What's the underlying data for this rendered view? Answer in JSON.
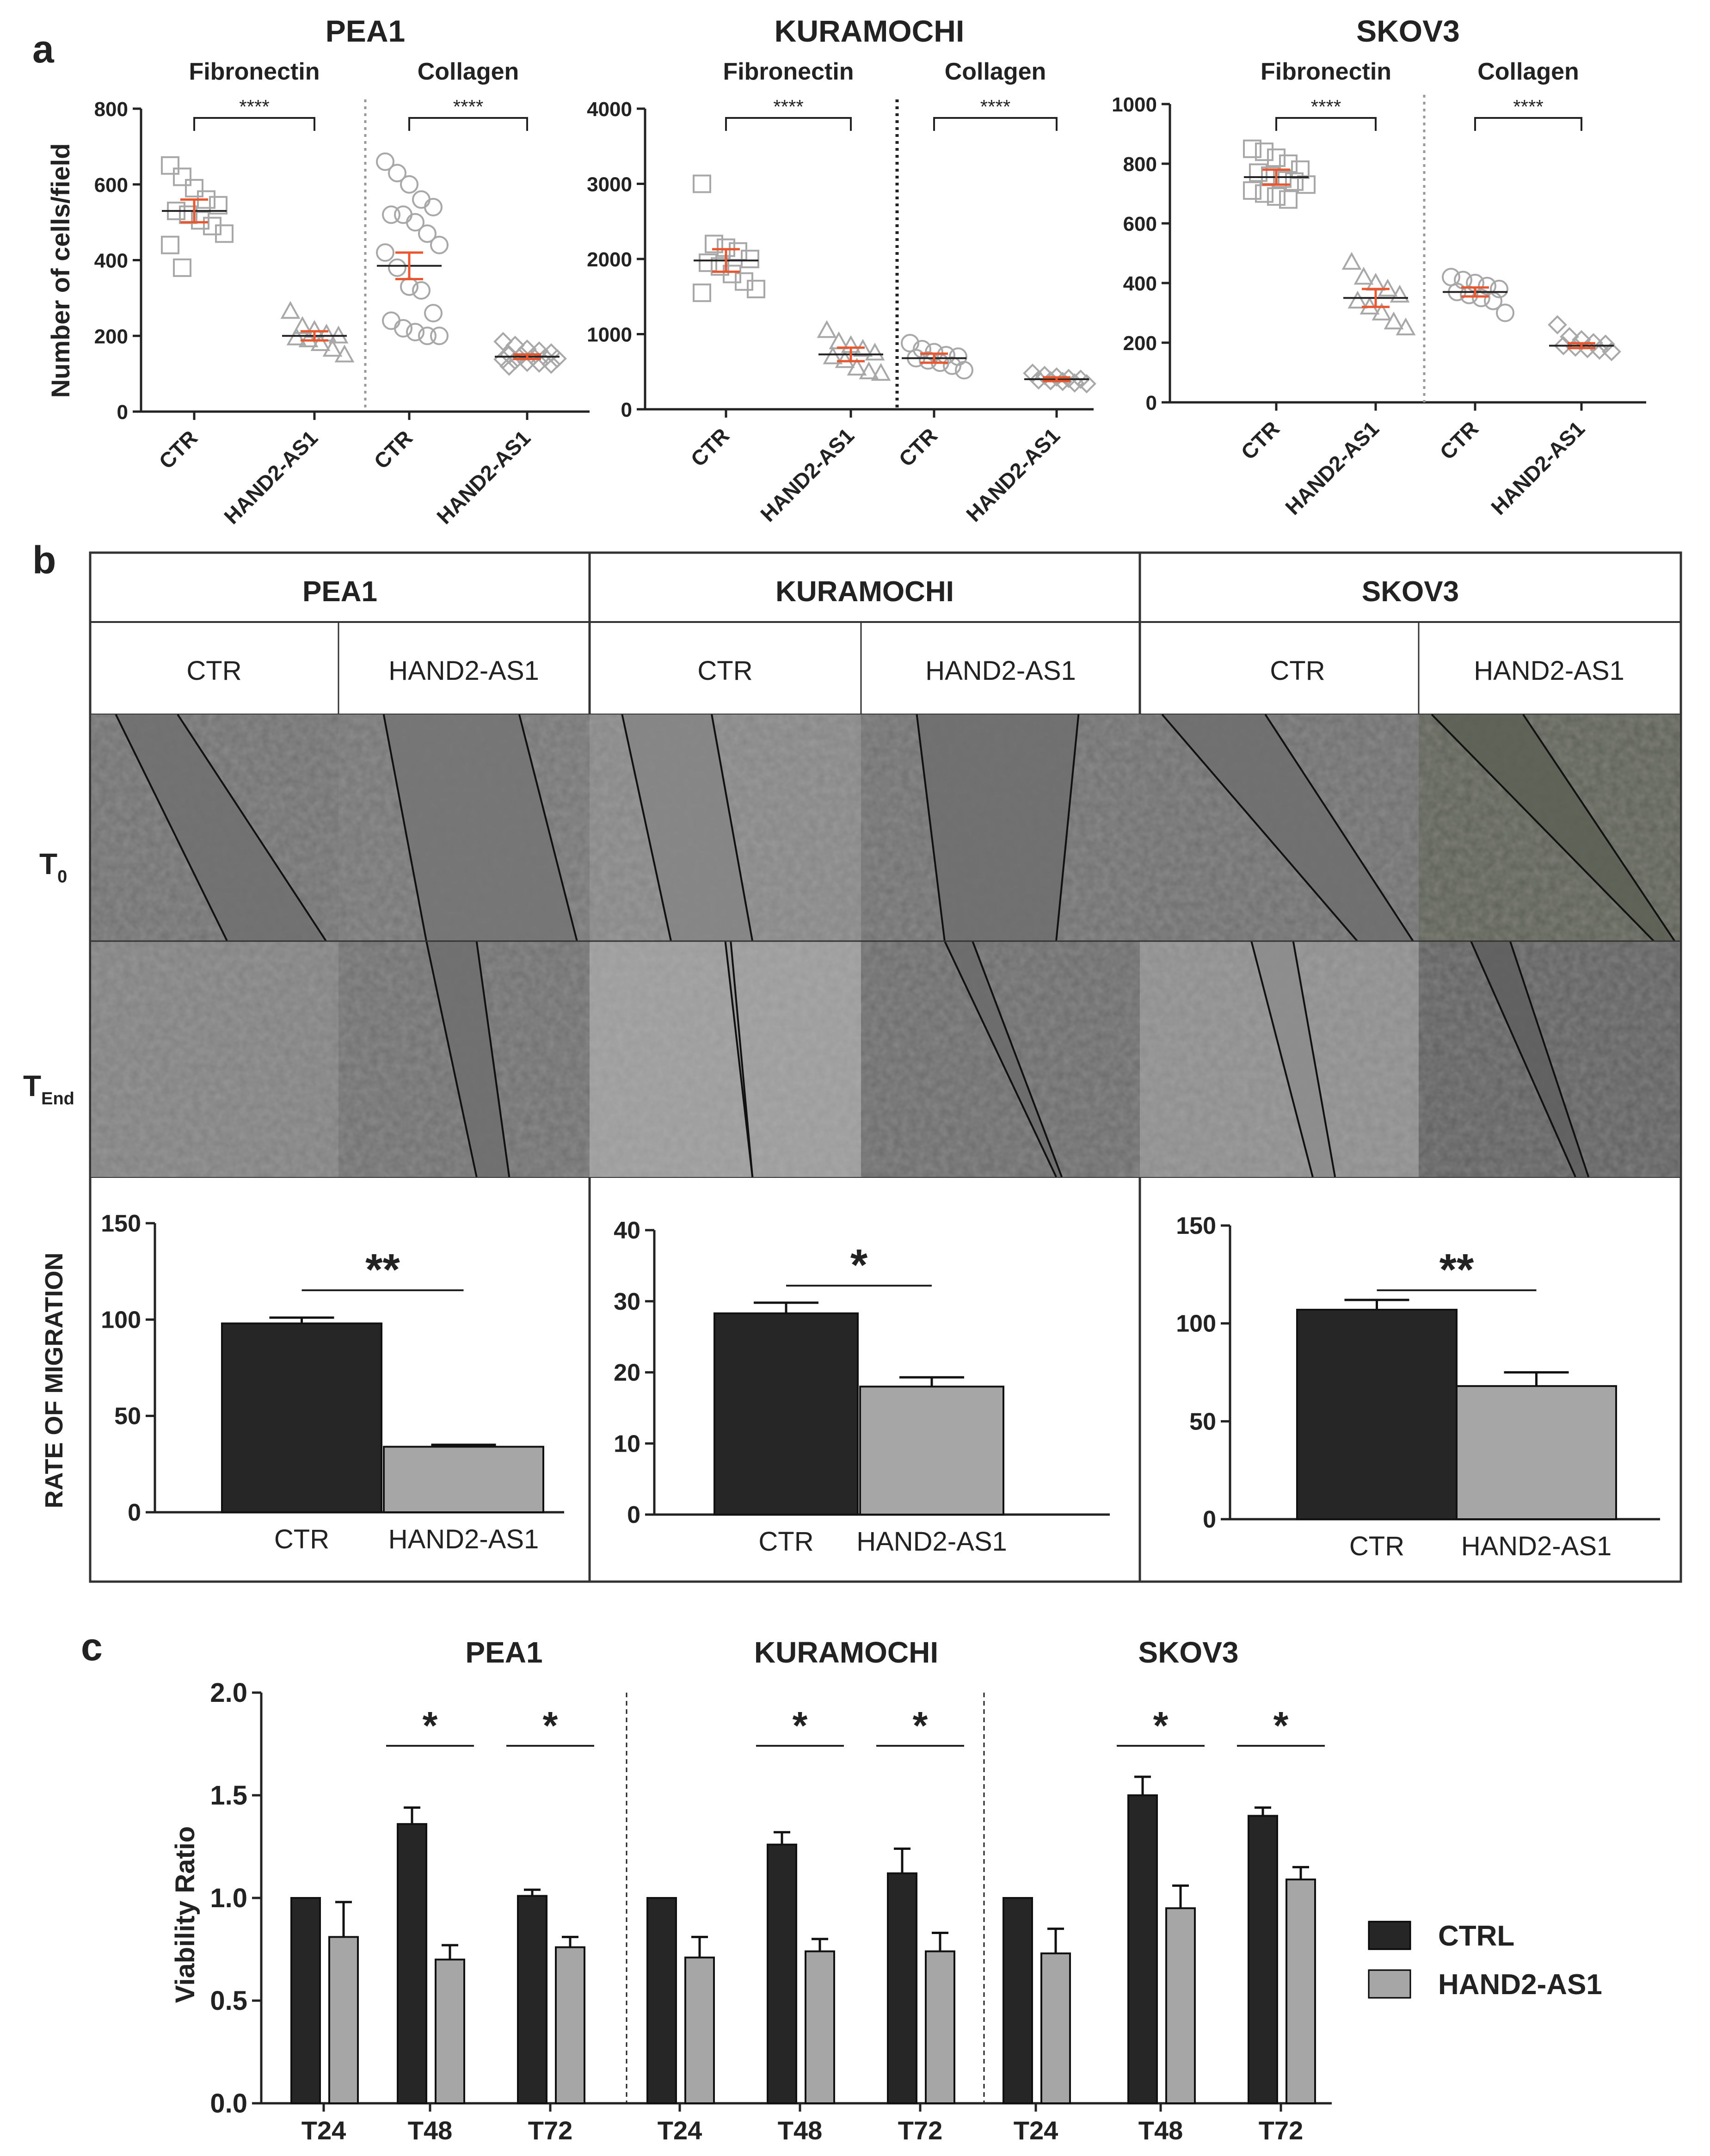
{
  "panels": {
    "a": "a",
    "b": "b",
    "c": "c"
  },
  "colors": {
    "ctr_bar": "#262626",
    "treat_bar": "#a6a6a6",
    "error_red": "#e8572f",
    "marker": "#a8a8a8"
  },
  "panel_a": {
    "ylabel": "Number of cells/field",
    "significance": "****",
    "charts": [
      {
        "cell_line": "PEA1",
        "substrates": [
          "Fibronectin",
          "Collagen"
        ],
        "categories": [
          "CTR",
          "HAND2-AS1",
          "CTR",
          "HAND2-AS1"
        ],
        "ymax": 800,
        "yticks": [
          0,
          200,
          400,
          600,
          800
        ],
        "groups": [
          {
            "marker": "square",
            "mean": 530,
            "sem": 30,
            "points": [
              650,
              620,
              590,
              560,
              545,
              530,
              520,
              505,
              490,
              470,
              440,
              380
            ]
          },
          {
            "marker": "triangle",
            "mean": 200,
            "sem": 12,
            "points": [
              265,
              225,
              215,
              205,
              200,
              195,
              190,
              180,
              165,
              150
            ]
          },
          {
            "marker": "circle",
            "mean": 385,
            "sem": 35,
            "points": [
              660,
              630,
              600,
              560,
              540,
              520,
              520,
              500,
              470,
              440,
              420,
              380,
              330,
              320,
              260,
              240,
              220,
              210,
              200,
              200
            ]
          },
          {
            "marker": "diamond",
            "mean": 145,
            "sem": 6,
            "points": [
              185,
              175,
              165,
              160,
              155,
              150,
              148,
              145,
              142,
              140,
              138,
              135,
              130,
              128,
              125,
              120
            ]
          }
        ]
      },
      {
        "cell_line": "KURAMOCHI",
        "substrates": [
          "Fibronectin",
          "Collagen"
        ],
        "categories": [
          "CTR",
          "HAND2-AS1",
          "CTR",
          "HAND2-AS1"
        ],
        "ymax": 4000,
        "yticks": [
          0,
          1000,
          2000,
          3000,
          4000
        ],
        "groups": [
          {
            "marker": "square",
            "mean": 1980,
            "sem": 150,
            "points": [
              3000,
              2200,
              2150,
              2100,
              2000,
              1950,
              1900,
              1800,
              1700,
              1600,
              1550
            ]
          },
          {
            "marker": "triangle",
            "mean": 730,
            "sem": 90,
            "points": [
              1050,
              900,
              850,
              800,
              750,
              700,
              650,
              550,
              500,
              480
            ]
          },
          {
            "marker": "circle",
            "mean": 680,
            "sem": 60,
            "points": [
              880,
              800,
              760,
              720,
              700,
              680,
              650,
              620,
              580,
              520
            ]
          },
          {
            "marker": "diamond",
            "mean": 400,
            "sem": 25,
            "points": [
              480,
              450,
              430,
              410,
              400,
              390,
              380,
              370,
              350,
              340
            ]
          }
        ]
      },
      {
        "cell_line": "SKOV3",
        "substrates": [
          "Fibronectin",
          "Collagen"
        ],
        "categories": [
          "CTR",
          "HAND2-AS1",
          "CTR",
          "HAND2-AS1"
        ],
        "ymax": 1000,
        "yticks": [
          0,
          200,
          400,
          600,
          800,
          1000
        ],
        "groups": [
          {
            "marker": "square",
            "mean": 755,
            "sem": 25,
            "points": [
              850,
              840,
              820,
              800,
              780,
              770,
              760,
              750,
              740,
              730,
              710,
              700,
              690,
              680
            ]
          },
          {
            "marker": "triangle",
            "mean": 350,
            "sem": 30,
            "points": [
              470,
              420,
              400,
              380,
              360,
              340,
              320,
              300,
              270,
              250
            ]
          },
          {
            "marker": "circle",
            "mean": 370,
            "sem": 15,
            "points": [
              420,
              410,
              400,
              390,
              380,
              370,
              360,
              350,
              340,
              300
            ]
          },
          {
            "marker": "diamond",
            "mean": 190,
            "sem": 8,
            "points": [
              260,
              220,
              210,
              200,
              195,
              190,
              185,
              180,
              175,
              170
            ]
          }
        ]
      }
    ]
  },
  "panel_b": {
    "lines": [
      "PEA1",
      "KURAMOCHI",
      "SKOV3"
    ],
    "conditions": [
      "CTR",
      "HAND2-AS1"
    ],
    "row_labels": [
      {
        "main": "T",
        "sub": "0"
      },
      {
        "main": "T",
        "sub": "End"
      }
    ],
    "ylabel": "RATE OF MIGRATION"
  },
  "chart_data": [
    {
      "type": "bar",
      "title": "PEA1 Rate of Migration",
      "ylabel": "RATE OF MIGRATION",
      "categories": [
        "CTR",
        "HAND2-AS1"
      ],
      "values": [
        98,
        34
      ],
      "errors": [
        3,
        1
      ],
      "ylim": [
        0,
        150
      ],
      "yticks": [
        0,
        50,
        100,
        150
      ],
      "significance": "**"
    },
    {
      "type": "bar",
      "title": "KURAMOCHI Rate of Migration",
      "ylabel": "RATE OF MIGRATION",
      "categories": [
        "CTR",
        "HAND2-AS1"
      ],
      "values": [
        28.3,
        18
      ],
      "errors": [
        1.5,
        1.3
      ],
      "ylim": [
        0,
        40
      ],
      "yticks": [
        0,
        10,
        20,
        30,
        40
      ],
      "significance": "*"
    },
    {
      "type": "bar",
      "title": "SKOV3 Rate of Migration",
      "ylabel": "RATE OF MIGRATION",
      "categories": [
        "CTR",
        "HAND2-AS1"
      ],
      "values": [
        107,
        68
      ],
      "errors": [
        5,
        7
      ],
      "ylim": [
        0,
        150
      ],
      "yticks": [
        0,
        50,
        100,
        150
      ],
      "significance": "**"
    },
    {
      "type": "bar",
      "title": "Viability",
      "ylabel": "Viability Ratio",
      "ylim": [
        0,
        2.0
      ],
      "yticks": [
        "0.0",
        "0.5",
        "1.0",
        "1.5",
        "2.0"
      ],
      "groups": [
        "PEA1",
        "KURAMOCHI",
        "SKOV3"
      ],
      "categories": [
        "T24",
        "T48",
        "T72"
      ],
      "significance": [
        "",
        "*",
        "*"
      ],
      "series": [
        {
          "name": "CTRL",
          "values": [
            [
              1.0,
              1.36,
              1.01
            ],
            [
              1.0,
              1.26,
              1.12
            ],
            [
              1.0,
              1.5,
              1.4
            ]
          ],
          "errors": [
            [
              0,
              0.08,
              0.03
            ],
            [
              0,
              0.06,
              0.12
            ],
            [
              0,
              0.09,
              0.04
            ]
          ]
        },
        {
          "name": "HAND2-AS1",
          "values": [
            [
              0.81,
              0.7,
              0.76
            ],
            [
              0.71,
              0.74,
              0.74
            ],
            [
              0.73,
              0.95,
              1.09
            ]
          ],
          "errors": [
            [
              0.17,
              0.07,
              0.05
            ],
            [
              0.1,
              0.06,
              0.09
            ],
            [
              0.12,
              0.11,
              0.06
            ]
          ]
        }
      ]
    }
  ]
}
